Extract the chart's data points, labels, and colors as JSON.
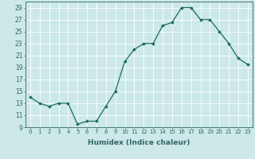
{
  "x": [
    0,
    1,
    2,
    3,
    4,
    5,
    6,
    7,
    8,
    9,
    10,
    11,
    12,
    13,
    14,
    15,
    16,
    17,
    18,
    19,
    20,
    21,
    22,
    23
  ],
  "y": [
    14.0,
    13.0,
    12.5,
    13.0,
    13.0,
    9.5,
    10.0,
    10.0,
    12.5,
    15.0,
    20.0,
    22.0,
    23.0,
    23.0,
    26.0,
    26.5,
    29.0,
    29.0,
    27.0,
    27.0,
    25.0,
    23.0,
    20.5,
    19.5
  ],
  "xlabel": "Humidex (Indice chaleur)",
  "ylim": [
    9,
    30
  ],
  "xlim": [
    -0.5,
    23.5
  ],
  "yticks": [
    9,
    11,
    13,
    15,
    17,
    19,
    21,
    23,
    25,
    27,
    29
  ],
  "xticks": [
    0,
    1,
    2,
    3,
    4,
    5,
    6,
    7,
    8,
    9,
    10,
    11,
    12,
    13,
    14,
    15,
    16,
    17,
    18,
    19,
    20,
    21,
    22,
    23
  ],
  "xtick_labels": [
    "0",
    "1",
    "2",
    "3",
    "4",
    "5",
    "6",
    "7",
    "8",
    "9",
    "10",
    "11",
    "12",
    "13",
    "14",
    "15",
    "16",
    "17",
    "18",
    "19",
    "20",
    "21",
    "22",
    "23"
  ],
  "line_color": "#1a6b5a",
  "marker_color": "#1a6b5a",
  "bg_color": "#cce8e8",
  "grid_color": "#ffffff",
  "grid_minor_color": "#ddeaea",
  "fig_bg": "#cce8e8",
  "tick_color": "#336666",
  "xlabel_fontsize": 6.5,
  "ytick_fontsize": 5.5,
  "xtick_fontsize": 5.0
}
